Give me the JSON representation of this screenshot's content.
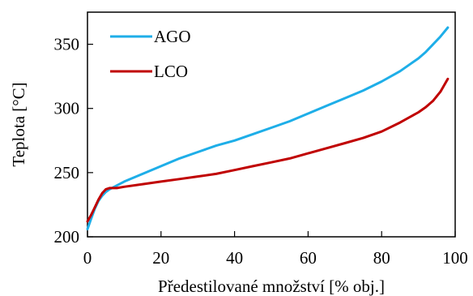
{
  "chart_data": {
    "type": "line",
    "xlabel": "Předestilované množství [% obj.]",
    "ylabel": "Teplota [°C]",
    "xlim": [
      0,
      100
    ],
    "ylim": [
      200,
      375
    ],
    "xticks": [
      0,
      20,
      40,
      60,
      80,
      100
    ],
    "yticks": [
      200,
      250,
      300,
      350
    ],
    "grid": false,
    "legend_position": "top-left",
    "series": [
      {
        "name": "AGO",
        "color": "#1EAEE8",
        "x": [
          0,
          1,
          2,
          3,
          4,
          5,
          6,
          8,
          10,
          15,
          20,
          25,
          30,
          35,
          40,
          45,
          50,
          55,
          60,
          65,
          70,
          75,
          80,
          85,
          88,
          90,
          92,
          94,
          96,
          98
        ],
        "y": [
          206,
          214,
          222,
          228,
          232,
          235,
          237,
          240,
          243,
          249,
          255,
          261,
          266,
          271,
          275,
          280,
          285,
          290,
          296,
          302,
          308,
          314,
          321,
          329,
          335,
          339,
          344,
          350,
          356,
          363
        ]
      },
      {
        "name": "LCO",
        "color": "#C00000",
        "x": [
          0,
          1,
          2,
          3,
          4,
          5,
          6,
          7,
          8,
          10,
          15,
          20,
          25,
          30,
          35,
          40,
          45,
          50,
          55,
          60,
          65,
          70,
          75,
          80,
          85,
          90,
          92,
          94,
          96,
          98
        ],
        "y": [
          212,
          217,
          223,
          229,
          234,
          237,
          238,
          238,
          238,
          239,
          241,
          243,
          245,
          247,
          249,
          252,
          255,
          258,
          261,
          265,
          269,
          273,
          277,
          282,
          289,
          297,
          301,
          306,
          313,
          323
        ]
      }
    ]
  }
}
